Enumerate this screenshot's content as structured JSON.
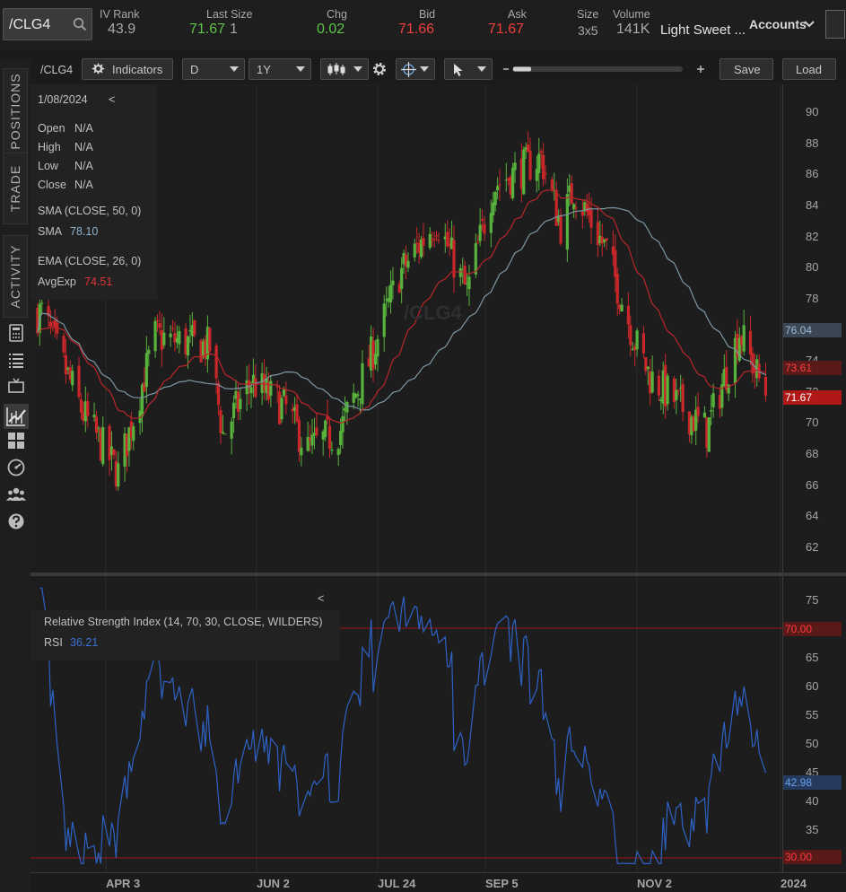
{
  "quote": {
    "symbol": "/CLG4",
    "iv_rank_label": "IV Rank",
    "iv_rank": "43.9",
    "last_size_label": "Last Size",
    "last": "71.67",
    "size": "1",
    "chg_label": "Chg",
    "chg": "0.02",
    "bid_label": "Bid",
    "bid": "71.66",
    "ask_label": "Ask",
    "ask": "71.67",
    "size_label": "Size",
    "bid_ask_size": "3x5",
    "volume_label": "Volume",
    "volume": "141K",
    "description": "Light Sweet ...",
    "accounts_label": "Accounts"
  },
  "sidebar": {
    "tabs": [
      "POSITIONS",
      "TRADE",
      "ACTIVITY"
    ]
  },
  "toolbar": {
    "symbol": "/CLG4",
    "indicators_label": "Indicators",
    "aggregation": "D",
    "range": "1Y",
    "save_label": "Save",
    "load_label": "Load"
  },
  "info": {
    "date": "1/08/2024",
    "collapse": "<",
    "open_label": "Open",
    "open": "N/A",
    "high_label": "High",
    "high": "N/A",
    "low_label": "Low",
    "low": "N/A",
    "close_label": "Close",
    "close": "N/A",
    "sma_title": "SMA (CLOSE, 50, 0)",
    "sma_label": "SMA",
    "sma_value": "78.10",
    "ema_title": "EMA (CLOSE, 26, 0)",
    "ema_label": "AvgExp",
    "ema_value": "74.51"
  },
  "watermark": "/CLG4",
  "rsi_panel": {
    "collapse": "<",
    "title": "Relative Strength Index (14, 70, 30, CLOSE, WILDERS)",
    "label": "RSI",
    "value": "36.21"
  },
  "price_axis": {
    "ticks": [
      "90",
      "88",
      "86",
      "84",
      "82",
      "80",
      "78",
      "76",
      "74",
      "72",
      "70",
      "68",
      "66",
      "64",
      "62"
    ],
    "tag_sma": "76.04",
    "tag_ema": "73.61",
    "tag_last": "71.67"
  },
  "rsi_axis": {
    "ticks": [
      "75",
      "65",
      "60",
      "55",
      "50",
      "45",
      "40",
      "35"
    ],
    "tag_upper": "70.00",
    "tag_value": "42.98",
    "tag_lower": "30.00"
  },
  "time_axis": {
    "labels": [
      "APR 3",
      "JUN 2",
      "JUL 24",
      "SEP 5",
      "NOV 2",
      "2024"
    ]
  },
  "colors": {
    "up": "#58b33d",
    "down": "#c9272a",
    "sma": "#7e97a4",
    "ema": "#b8262a",
    "rsi": "#2e62c6",
    "ob_os": "#a01818"
  },
  "chart_data": [
    {
      "type": "candlestick",
      "ylim": [
        61,
        91
      ],
      "x_tick_labels": [
        "APR 3",
        "JUN 2",
        "JUL 24",
        "SEP 5",
        "NOV 2",
        "2024"
      ],
      "close_anchors": [
        {
          "x": "Feb 10",
          "close": 77.0
        },
        {
          "x": "Mar 1",
          "close": 70.5
        },
        {
          "x": "Mar 17",
          "close": 66.7
        },
        {
          "x": "Apr 3",
          "close": 75.5
        },
        {
          "x": "Apr 28",
          "close": 74.8
        },
        {
          "x": "May 4",
          "close": 69.2
        },
        {
          "x": "May 17",
          "close": 72.6
        },
        {
          "x": "Jun 2",
          "close": 70.8
        },
        {
          "x": "Jun 12",
          "close": 68.2
        },
        {
          "x": "Jun 27",
          "close": 69.5
        },
        {
          "x": "Jul 10",
          "close": 73.8
        },
        {
          "x": "Jul 24",
          "close": 79.5
        },
        {
          "x": "Aug 10",
          "close": 83.0
        },
        {
          "x": "Aug 24",
          "close": 78.3
        },
        {
          "x": "Sep 5",
          "close": 85.2
        },
        {
          "x": "Sep 27",
          "close": 87.0
        },
        {
          "x": "Oct 6",
          "close": 82.6
        },
        {
          "x": "Oct 12",
          "close": 85.0
        },
        {
          "x": "Oct 27",
          "close": 81.0
        },
        {
          "x": "Nov 9",
          "close": 75.2
        },
        {
          "x": "Nov 16",
          "close": 72.9
        },
        {
          "x": "Dec 12",
          "close": 69.4
        },
        {
          "x": "Dec 27",
          "close": 75.8
        },
        {
          "x": "Jan 8",
          "close": 71.67
        }
      ],
      "series": [
        {
          "name": "SMA (CLOSE, 50, 0)",
          "last": 78.1
        },
        {
          "name": "EMA (CLOSE, 26, 0)",
          "last": 74.51
        }
      ]
    },
    {
      "type": "line",
      "title": "Relative Strength Index (14, 70, 30, CLOSE, WILDERS)",
      "ylim": [
        28,
        77
      ],
      "levels": [
        70,
        30
      ],
      "last": 36.21
    }
  ]
}
